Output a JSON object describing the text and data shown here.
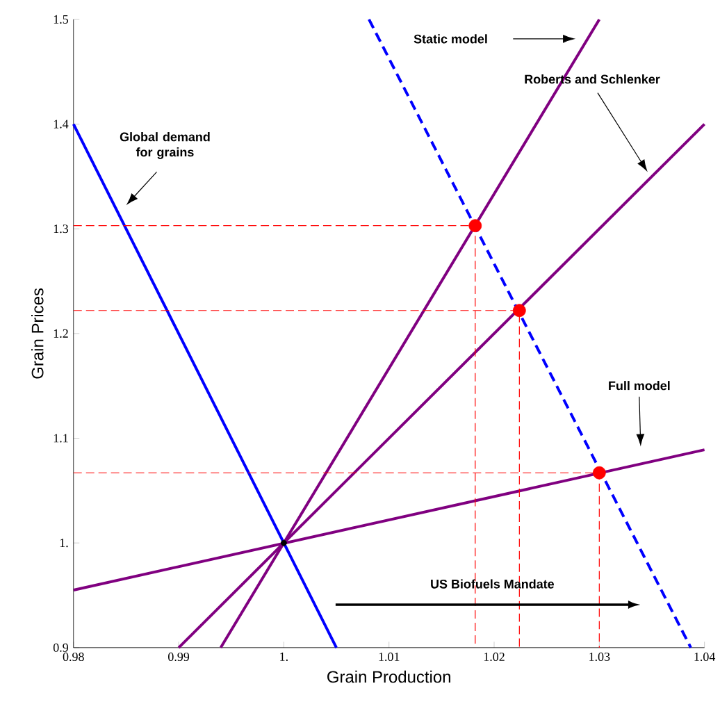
{
  "chart_data": {
    "type": "line",
    "xlabel": "Grain Production",
    "ylabel": "Grain Prices",
    "xlim": [
      0.98,
      1.04
    ],
    "ylim": [
      0.9,
      1.5
    ],
    "xticks": [
      0.98,
      0.99,
      {
        "value": 1,
        "label": "1."
      },
      1.01,
      1.02,
      1.03,
      1.04
    ],
    "yticks": [
      0.9,
      {
        "value": 1,
        "label": "1."
      },
      1.1,
      1.2,
      1.3,
      1.4,
      1.5
    ],
    "grid": false,
    "series": [
      {
        "color": "#0000ff",
        "line_style": "solid",
        "x": [
          0.98,
          1.005
        ],
        "values": [
          1.4,
          0.9
        ]
      },
      {
        "color": "#0000ff",
        "line_style": "dashed",
        "x": [
          1.0081,
          1.0387
        ],
        "values": [
          1.5,
          0.9
        ]
      },
      {
        "color": "#800080",
        "line_style": "solid",
        "x": [
          0.994,
          1.03
        ],
        "values": [
          0.9,
          1.5
        ]
      },
      {
        "color": "#800080",
        "line_style": "solid",
        "x": [
          0.99,
          1.04
        ],
        "values": [
          0.9,
          1.4
        ]
      },
      {
        "color": "#800080",
        "line_style": "solid",
        "x": [
          0.98,
          1.04
        ],
        "values": [
          0.955,
          1.089
        ]
      },
      {
        "color": "#ff0000",
        "line_style": "dashed",
        "x": [
          0.98,
          1.0182,
          1.0182
        ],
        "values": [
          1.303,
          1.303,
          0.9
        ]
      },
      {
        "color": "#ff0000",
        "line_style": "dashed",
        "x": [
          0.98,
          1.0224,
          1.0224
        ],
        "values": [
          1.222,
          1.222,
          0.9
        ]
      },
      {
        "color": "#ff0000",
        "line_style": "dashed",
        "x": [
          0.98,
          1.03,
          1.03
        ],
        "values": [
          1.067,
          1.067,
          0.9
        ]
      },
      {
        "type": "scatter",
        "color": "#ff0000",
        "x": [
          1.0182,
          1.0224,
          1.03
        ],
        "values": [
          1.303,
          1.222,
          1.067
        ]
      },
      {
        "type": "scatter",
        "color": "#000000",
        "x": [
          1.0
        ],
        "values": [
          1.0
        ]
      }
    ],
    "annotations": [
      "Global demand\nfor grains",
      "Static model",
      "Roberts and Schlenker",
      "Full model",
      "US Biofuels Mandate"
    ]
  }
}
